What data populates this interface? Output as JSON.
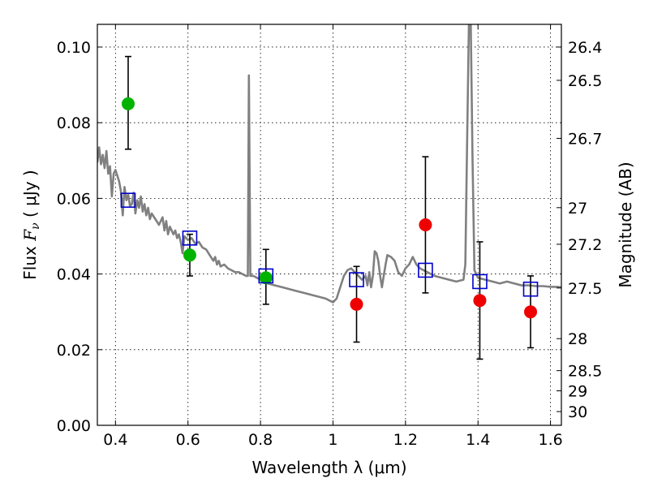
{
  "chart_data": {
    "type": "scatter",
    "xlabel": "Wavelength  λ (μm)",
    "ylabel": "Flux  F_ν  ( μJy )",
    "ylabel_parts": {
      "prefix": "Flux  ",
      "symbol": "F",
      "subscript": "ν",
      "suffix": "  ( μJy )"
    },
    "y2label": "Magnitude (AB)",
    "xlim": [
      0.35,
      1.63
    ],
    "ylim": [
      0.0,
      0.106
    ],
    "grid": true,
    "x_ticks": [
      {
        "value": 0.4,
        "label": "0.4"
      },
      {
        "value": 0.6,
        "label": "0.6"
      },
      {
        "value": 0.8,
        "label": "0.8"
      },
      {
        "value": 1.0,
        "label": "1"
      },
      {
        "value": 1.2,
        "label": "1.2"
      },
      {
        "value": 1.4,
        "label": "1.4"
      },
      {
        "value": 1.6,
        "label": "1.6"
      }
    ],
    "y_ticks": [
      {
        "value": 0.0,
        "label": "0.00"
      },
      {
        "value": 0.02,
        "label": "0.02"
      },
      {
        "value": 0.04,
        "label": "0.04"
      },
      {
        "value": 0.06,
        "label": "0.06"
      },
      {
        "value": 0.08,
        "label": "0.08"
      },
      {
        "value": 0.1,
        "label": "0.10"
      }
    ],
    "y2_ticks": [
      {
        "label": "26.4"
      },
      {
        "label": "26.5"
      },
      {
        "label": "26.7"
      },
      {
        "label": "27"
      },
      {
        "label": "27.2"
      },
      {
        "label": "27.5"
      },
      {
        "label": "28"
      },
      {
        "label": "28.5"
      },
      {
        "label": "29"
      },
      {
        "label": "30"
      }
    ],
    "series": [
      {
        "role": "model_spectrum",
        "kind": "line",
        "color": "#808080",
        "points": [
          [
            0.35,
            0.0695
          ],
          [
            0.355,
            0.0735
          ],
          [
            0.36,
            0.069
          ],
          [
            0.365,
            0.0715
          ],
          [
            0.37,
            0.068
          ],
          [
            0.375,
            0.0725
          ],
          [
            0.38,
            0.0665
          ],
          [
            0.385,
            0.0685
          ],
          [
            0.39,
            0.0605
          ],
          [
            0.395,
            0.0665
          ],
          [
            0.4,
            0.0675
          ],
          [
            0.405,
            0.066
          ],
          [
            0.41,
            0.0645
          ],
          [
            0.415,
            0.062
          ],
          [
            0.42,
            0.0555
          ],
          [
            0.425,
            0.063
          ],
          [
            0.43,
            0.0595
          ],
          [
            0.435,
            0.061
          ],
          [
            0.44,
            0.058
          ],
          [
            0.445,
            0.0585
          ],
          [
            0.45,
            0.0615
          ],
          [
            0.455,
            0.056
          ],
          [
            0.46,
            0.0595
          ],
          [
            0.465,
            0.0575
          ],
          [
            0.47,
            0.0605
          ],
          [
            0.475,
            0.0565
          ],
          [
            0.48,
            0.0585
          ],
          [
            0.485,
            0.0555
          ],
          [
            0.49,
            0.0575
          ],
          [
            0.495,
            0.0545
          ],
          [
            0.5,
            0.056
          ],
          [
            0.51,
            0.0545
          ],
          [
            0.52,
            0.053
          ],
          [
            0.53,
            0.055
          ],
          [
            0.535,
            0.0515
          ],
          [
            0.54,
            0.054
          ],
          [
            0.545,
            0.0505
          ],
          [
            0.55,
            0.0525
          ],
          [
            0.56,
            0.0505
          ],
          [
            0.565,
            0.0515
          ],
          [
            0.57,
            0.0495
          ],
          [
            0.575,
            0.0505
          ],
          [
            0.58,
            0.0485
          ],
          [
            0.585,
            0.0455
          ],
          [
            0.59,
            0.05
          ],
          [
            0.6,
            0.049
          ],
          [
            0.61,
            0.0495
          ],
          [
            0.62,
            0.048
          ],
          [
            0.63,
            0.0485
          ],
          [
            0.64,
            0.047
          ],
          [
            0.65,
            0.0465
          ],
          [
            0.66,
            0.045
          ],
          [
            0.67,
            0.0435
          ],
          [
            0.675,
            0.0445
          ],
          [
            0.68,
            0.0425
          ],
          [
            0.685,
            0.0435
          ],
          [
            0.69,
            0.042
          ],
          [
            0.7,
            0.0425
          ],
          [
            0.71,
            0.0415
          ],
          [
            0.72,
            0.041
          ],
          [
            0.73,
            0.0405
          ],
          [
            0.74,
            0.0405
          ],
          [
            0.75,
            0.04
          ],
          [
            0.76,
            0.0395
          ],
          [
            0.765,
            0.0395
          ],
          [
            0.768,
            0.0925
          ],
          [
            0.772,
            0.0395
          ],
          [
            0.78,
            0.0395
          ],
          [
            0.79,
            0.039
          ],
          [
            0.8,
            0.0385
          ],
          [
            0.81,
            0.038
          ],
          [
            0.82,
            0.0375
          ],
          [
            0.84,
            0.037
          ],
          [
            0.86,
            0.0365
          ],
          [
            0.88,
            0.036
          ],
          [
            0.9,
            0.0355
          ],
          [
            0.92,
            0.035
          ],
          [
            0.94,
            0.0345
          ],
          [
            0.96,
            0.034
          ],
          [
            0.98,
            0.0335
          ],
          [
            0.99,
            0.033
          ],
          [
            1.0,
            0.0325
          ],
          [
            1.01,
            0.0335
          ],
          [
            1.02,
            0.0365
          ],
          [
            1.03,
            0.0395
          ],
          [
            1.04,
            0.041
          ],
          [
            1.05,
            0.0415
          ],
          [
            1.06,
            0.0405
          ],
          [
            1.07,
            0.0395
          ],
          [
            1.08,
            0.0385
          ],
          [
            1.09,
            0.0395
          ],
          [
            1.095,
            0.037
          ],
          [
            1.1,
            0.0405
          ],
          [
            1.105,
            0.0365
          ],
          [
            1.11,
            0.0395
          ],
          [
            1.115,
            0.046
          ],
          [
            1.12,
            0.0455
          ],
          [
            1.125,
            0.0435
          ],
          [
            1.13,
            0.0395
          ],
          [
            1.135,
            0.0365
          ],
          [
            1.14,
            0.0395
          ],
          [
            1.145,
            0.0425
          ],
          [
            1.15,
            0.045
          ],
          [
            1.16,
            0.0445
          ],
          [
            1.17,
            0.0435
          ],
          [
            1.18,
            0.0405
          ],
          [
            1.19,
            0.0395
          ],
          [
            1.2,
            0.0415
          ],
          [
            1.21,
            0.0425
          ],
          [
            1.22,
            0.0445
          ],
          [
            1.23,
            0.0425
          ],
          [
            1.24,
            0.0415
          ],
          [
            1.26,
            0.0405
          ],
          [
            1.28,
            0.0395
          ],
          [
            1.3,
            0.039
          ],
          [
            1.32,
            0.0385
          ],
          [
            1.34,
            0.038
          ],
          [
            1.36,
            0.0385
          ],
          [
            1.365,
            0.0425
          ],
          [
            1.37,
            0.075
          ],
          [
            1.375,
            0.106
          ],
          [
            1.38,
            0.106
          ],
          [
            1.385,
            0.07
          ],
          [
            1.39,
            0.041
          ],
          [
            1.4,
            0.039
          ],
          [
            1.42,
            0.0385
          ],
          [
            1.44,
            0.038
          ],
          [
            1.46,
            0.0375
          ],
          [
            1.48,
            0.038
          ],
          [
            1.5,
            0.0375
          ],
          [
            1.52,
            0.037
          ],
          [
            1.54,
            0.037
          ],
          [
            1.56,
            0.0368
          ],
          [
            1.58,
            0.0368
          ],
          [
            1.6,
            0.0366
          ],
          [
            1.62,
            0.0366
          ],
          [
            1.63,
            0.0365
          ]
        ]
      },
      {
        "role": "model_photometry",
        "kind": "open_square",
        "color": "#0000cc",
        "points": [
          [
            0.435,
            0.0595
          ],
          [
            0.605,
            0.0495
          ],
          [
            0.815,
            0.0395
          ],
          [
            1.065,
            0.0385
          ],
          [
            1.255,
            0.041
          ],
          [
            1.405,
            0.038
          ],
          [
            1.545,
            0.036
          ]
        ]
      },
      {
        "role": "detections_green",
        "kind": "circle",
        "color": "#00b300",
        "points": [
          {
            "x": 0.435,
            "y": 0.085,
            "err_low": 0.073,
            "err_high": 0.0975
          },
          {
            "x": 0.605,
            "y": 0.045,
            "err_low": 0.0395,
            "err_high": 0.0505
          },
          {
            "x": 0.815,
            "y": 0.039,
            "err_low": 0.032,
            "err_high": 0.0465
          }
        ]
      },
      {
        "role": "detections_red",
        "kind": "circle",
        "color": "#ee0000",
        "points": [
          {
            "x": 1.065,
            "y": 0.032,
            "err_low": 0.022,
            "err_high": 0.042
          },
          {
            "x": 1.255,
            "y": 0.053,
            "err_low": 0.035,
            "err_high": 0.071
          },
          {
            "x": 1.405,
            "y": 0.033,
            "err_low": 0.0175,
            "err_high": 0.0485
          },
          {
            "x": 1.545,
            "y": 0.03,
            "err_low": 0.0205,
            "err_high": 0.0395
          }
        ]
      }
    ]
  }
}
